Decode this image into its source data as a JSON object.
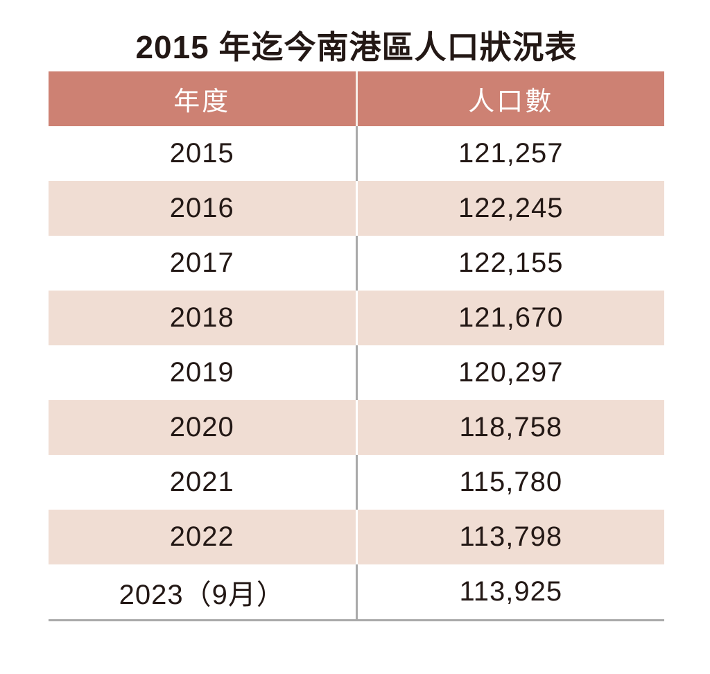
{
  "title": "2015 年迄今南港區人口狀況表",
  "chart_data": {
    "type": "table",
    "title": "2015 年迄今南港區人口狀況表",
    "columns": [
      "年度",
      "人口數"
    ],
    "rows": [
      [
        "2015",
        "121,257"
      ],
      [
        "2016",
        "122,245"
      ],
      [
        "2017",
        "122,155"
      ],
      [
        "2018",
        "121,670"
      ],
      [
        "2019",
        "120,297"
      ],
      [
        "2020",
        "118,758"
      ],
      [
        "2021",
        "115,780"
      ],
      [
        "2022",
        "113,798"
      ],
      [
        "2023（9月）",
        "113,925"
      ]
    ],
    "population_values": [
      121257,
      122245,
      122155,
      121670,
      120297,
      118758,
      115780,
      113798,
      113925
    ],
    "layout_hints": {
      "header_style": "solid salmon band, white text",
      "row_striping": "white / light pink alternating starting with white",
      "grid": "center column divider only; gray on white rows, white on pink rows; gray bottom rule"
    }
  },
  "colors": {
    "header_bg": "#cd8173",
    "row_alt_bg": "#f0ddd3",
    "divider_gray": "#a9a9a9",
    "text": "#231815",
    "header_text": "#ffffff",
    "background": "#ffffff"
  }
}
